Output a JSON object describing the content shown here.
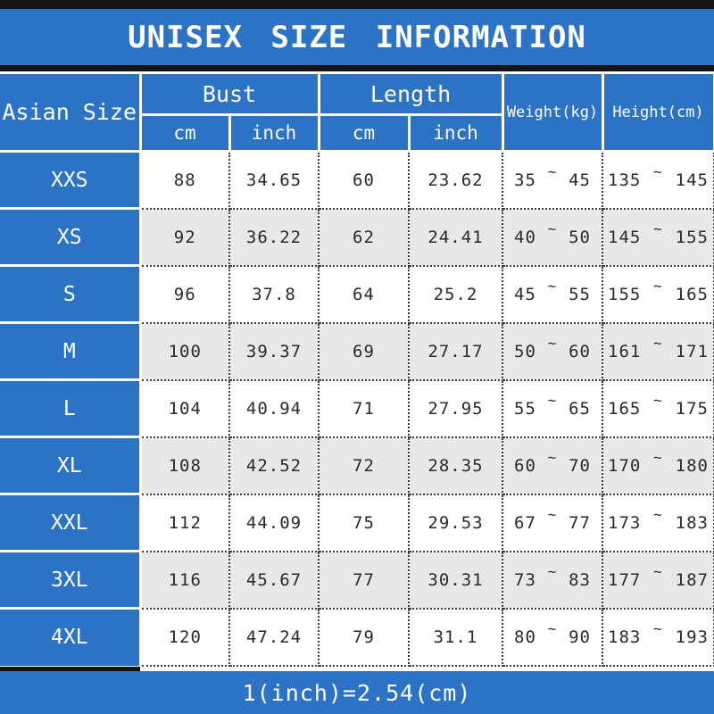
{
  "title": "UNISEX SIZE INFORMATION",
  "footer_note": "1(inch)=2.54(cm)",
  "colors": {
    "banner_blue": "#2d73c5",
    "border_black": "#141414",
    "stripe_gray": "#e8e8e8",
    "text_dark": "#2a2a2a",
    "text_white": "#ffffff"
  },
  "table": {
    "corner_header": "Asian Size",
    "bust_label": "Bust",
    "length_label": "Length",
    "weight_label": "Weight(kg)",
    "height_label": "Height(cm)",
    "units": [
      "cm",
      "inch",
      "cm",
      "inch"
    ],
    "tilde": "~",
    "rows": [
      {
        "size": "XXS",
        "bust_cm": "88",
        "bust_inch": "34.65",
        "length_cm": "60",
        "length_inch": "23.62",
        "weight_min": "35",
        "weight_max": "45",
        "height_min": "135",
        "height_max": "145"
      },
      {
        "size": "XS",
        "bust_cm": "92",
        "bust_inch": "36.22",
        "length_cm": "62",
        "length_inch": "24.41",
        "weight_min": "40",
        "weight_max": "50",
        "height_min": "145",
        "height_max": "155"
      },
      {
        "size": "S",
        "bust_cm": "96",
        "bust_inch": "37.8",
        "length_cm": "64",
        "length_inch": "25.2",
        "weight_min": "45",
        "weight_max": "55",
        "height_min": "155",
        "height_max": "165"
      },
      {
        "size": "M",
        "bust_cm": "100",
        "bust_inch": "39.37",
        "length_cm": "69",
        "length_inch": "27.17",
        "weight_min": "50",
        "weight_max": "60",
        "height_min": "161",
        "height_max": "171"
      },
      {
        "size": "L",
        "bust_cm": "104",
        "bust_inch": "40.94",
        "length_cm": "71",
        "length_inch": "27.95",
        "weight_min": "55",
        "weight_max": "65",
        "height_min": "165",
        "height_max": "175"
      },
      {
        "size": "XL",
        "bust_cm": "108",
        "bust_inch": "42.52",
        "length_cm": "72",
        "length_inch": "28.35",
        "weight_min": "60",
        "weight_max": "70",
        "height_min": "170",
        "height_max": "180"
      },
      {
        "size": "XXL",
        "bust_cm": "112",
        "bust_inch": "44.09",
        "length_cm": "75",
        "length_inch": "29.53",
        "weight_min": "67",
        "weight_max": "77",
        "height_min": "173",
        "height_max": "183"
      },
      {
        "size": "3XL",
        "bust_cm": "116",
        "bust_inch": "45.67",
        "length_cm": "77",
        "length_inch": "30.31",
        "weight_min": "73",
        "weight_max": "83",
        "height_min": "177",
        "height_max": "187"
      },
      {
        "size": "4XL",
        "bust_cm": "120",
        "bust_inch": "47.24",
        "length_cm": "79",
        "length_inch": "31.1",
        "weight_min": "80",
        "weight_max": "90",
        "height_min": "183",
        "height_max": "193"
      }
    ]
  },
  "chart_data": {
    "type": "table",
    "title": "UNISEX SIZE INFORMATION",
    "columns": [
      "Asian Size",
      "Bust cm",
      "Bust inch",
      "Length cm",
      "Length inch",
      "Weight(kg)",
      "Height(cm)"
    ],
    "rows": [
      [
        "XXS",
        88,
        34.65,
        60,
        23.62,
        "35 ~ 45",
        "135 ~ 145"
      ],
      [
        "XS",
        92,
        36.22,
        62,
        24.41,
        "40 ~ 50",
        "145 ~ 155"
      ],
      [
        "S",
        96,
        37.8,
        64,
        25.2,
        "45 ~ 55",
        "155 ~ 165"
      ],
      [
        "M",
        100,
        39.37,
        69,
        27.17,
        "50 ~ 60",
        "161 ~ 171"
      ],
      [
        "L",
        104,
        40.94,
        71,
        27.95,
        "55 ~ 65",
        "165 ~ 175"
      ],
      [
        "XL",
        108,
        42.52,
        72,
        28.35,
        "60 ~ 70",
        "170 ~ 180"
      ],
      [
        "XXL",
        112,
        44.09,
        75,
        29.53,
        "67 ~ 77",
        "173 ~ 183"
      ],
      [
        "3XL",
        116,
        45.67,
        77,
        30.31,
        "73 ~ 83",
        "177 ~ 187"
      ],
      [
        "4XL",
        120,
        47.24,
        79,
        31.1,
        "80 ~ 90",
        "183 ~ 193"
      ]
    ],
    "note": "1(inch)=2.54(cm)",
    "layout": "striped rows, blue headers, dotted cell borders"
  }
}
